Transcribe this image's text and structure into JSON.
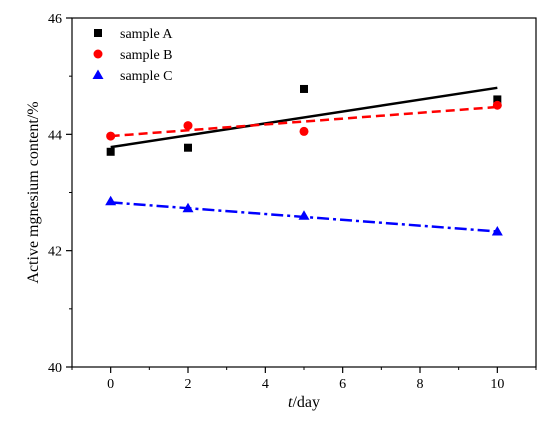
{
  "chart_data": {
    "type": "scatter",
    "xlabel_italic": "t",
    "xlabel_rest": "/day",
    "ylabel": "Active mgnesium content/%",
    "xlim": [
      -1,
      11
    ],
    "ylim": [
      40,
      46
    ],
    "x_ticks": [
      0,
      2,
      4,
      6,
      8,
      10
    ],
    "y_ticks": [
      40,
      42,
      44,
      46
    ],
    "grid": false,
    "legend_position": "top-left",
    "series": [
      {
        "name": "sample A",
        "marker": "square",
        "color": "#000000",
        "line_style": "solid",
        "x": [
          0,
          2,
          5,
          10
        ],
        "y": [
          43.7,
          43.77,
          44.78,
          44.6
        ],
        "fit": [
          [
            0,
            43.78
          ],
          [
            10,
            44.8
          ]
        ]
      },
      {
        "name": "sample B",
        "marker": "circle",
        "color": "#ff0000",
        "line_style": "dash",
        "x": [
          0,
          2,
          5,
          10
        ],
        "y": [
          43.97,
          44.15,
          44.05,
          44.5
        ],
        "fit": [
          [
            0,
            43.97
          ],
          [
            10,
            44.47
          ]
        ]
      },
      {
        "name": "sample C",
        "marker": "triangle",
        "color": "#0000ff",
        "line_style": "dashdot",
        "x": [
          0,
          2,
          5,
          10
        ],
        "y": [
          42.85,
          42.73,
          42.6,
          42.33
        ],
        "fit": [
          [
            0,
            42.83
          ],
          [
            10,
            42.33
          ]
        ]
      }
    ]
  }
}
